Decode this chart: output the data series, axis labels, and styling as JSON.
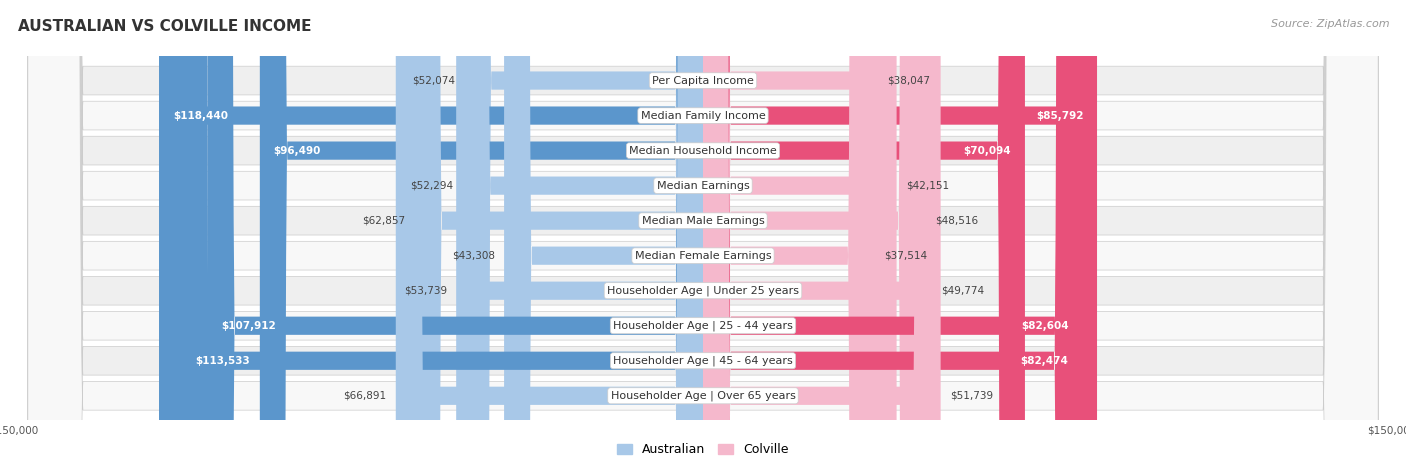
{
  "title": "AUSTRALIAN VS COLVILLE INCOME",
  "source": "Source: ZipAtlas.com",
  "categories": [
    "Per Capita Income",
    "Median Family Income",
    "Median Household Income",
    "Median Earnings",
    "Median Male Earnings",
    "Median Female Earnings",
    "Householder Age | Under 25 years",
    "Householder Age | 25 - 44 years",
    "Householder Age | 45 - 64 years",
    "Householder Age | Over 65 years"
  ],
  "australian_values": [
    52074,
    118440,
    96490,
    52294,
    62857,
    43308,
    53739,
    107912,
    113533,
    66891
  ],
  "colville_values": [
    38047,
    85792,
    70094,
    42151,
    48516,
    37514,
    49774,
    82604,
    82474,
    51739
  ],
  "aus_color_light": "#a8c8e8",
  "aus_color_dark": "#5b96cc",
  "col_color_light": "#f5b8cc",
  "col_color_dark": "#e8507a",
  "aus_thresh": 80000,
  "col_thresh": 65000,
  "max_value": 150000,
  "background_color": "#ffffff",
  "row_alt_color": "#efefef",
  "row_base_color": "#f8f8f8",
  "title_fontsize": 11,
  "label_fontsize": 8,
  "value_fontsize": 7.5,
  "legend_fontsize": 9,
  "source_fontsize": 8
}
